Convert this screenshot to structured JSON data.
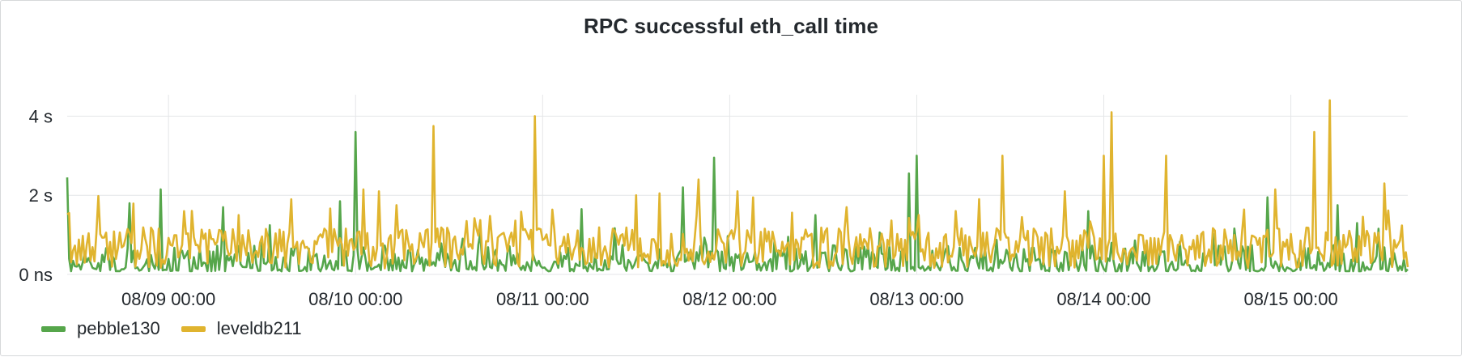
{
  "panel": {
    "title": "RPC successful eth_call time"
  },
  "chart_data": {
    "type": "line",
    "title": "RPC successful eth_call time",
    "xlabel": "",
    "ylabel": "",
    "x_range": [
      "08/08 11:00",
      "08/15 15:00"
    ],
    "ylim": [
      0,
      4.5
    ],
    "y_ticks": [
      {
        "value": 0,
        "label": "0 ns"
      },
      {
        "value": 2,
        "label": "2 s"
      },
      {
        "value": 4,
        "label": "4 s"
      }
    ],
    "x_ticks": [
      {
        "day": 9,
        "label": "08/09 00:00"
      },
      {
        "day": 10,
        "label": "08/10 00:00"
      },
      {
        "day": 11,
        "label": "08/11 00:00"
      },
      {
        "day": 12,
        "label": "08/12 00:00"
      },
      {
        "day": 13,
        "label": "08/13 00:00"
      },
      {
        "day": 14,
        "label": "08/14 00:00"
      },
      {
        "day": 15,
        "label": "08/15 00:00"
      }
    ],
    "grid": true,
    "legend": "bottom-left",
    "series": [
      {
        "name": "pebble130",
        "color": "#56a64b",
        "baseline": 0.3,
        "peaks": [
          {
            "t": "08/08 11:00",
            "v": 2.45
          },
          {
            "t": "08/08 19:00",
            "v": 1.8
          },
          {
            "t": "08/08 23:00",
            "v": 2.15
          },
          {
            "t": "08/09 07:00",
            "v": 1.7
          },
          {
            "t": "08/09 22:00",
            "v": 1.85
          },
          {
            "t": "08/10 00:00",
            "v": 3.6
          },
          {
            "t": "08/11 05:00",
            "v": 1.65
          },
          {
            "t": "08/11 18:00",
            "v": 2.2
          },
          {
            "t": "08/11 22:00",
            "v": 2.95
          },
          {
            "t": "08/12 11:00",
            "v": 1.5
          },
          {
            "t": "08/12 23:00",
            "v": 2.55
          },
          {
            "t": "08/13 00:00",
            "v": 3.0
          },
          {
            "t": "08/13 22:00",
            "v": 1.6
          },
          {
            "t": "08/14 21:00",
            "v": 1.95
          },
          {
            "t": "08/15 06:00",
            "v": 1.75
          }
        ]
      },
      {
        "name": "leveldb211",
        "color": "#e0b42f",
        "baseline": 0.8,
        "peaks": [
          {
            "t": "08/09 02:00",
            "v": 1.6
          },
          {
            "t": "08/09 09:00",
            "v": 1.5
          },
          {
            "t": "08/10 01:00",
            "v": 2.15
          },
          {
            "t": "08/10 03:00",
            "v": 2.1
          },
          {
            "t": "08/10 10:00",
            "v": 3.75
          },
          {
            "t": "08/10 23:00",
            "v": 4.0
          },
          {
            "t": "08/11 12:00",
            "v": 2.0
          },
          {
            "t": "08/11 15:00",
            "v": 2.05
          },
          {
            "t": "08/11 20:00",
            "v": 2.4
          },
          {
            "t": "08/12 01:00",
            "v": 2.1
          },
          {
            "t": "08/12 15:00",
            "v": 1.7
          },
          {
            "t": "08/13 08:00",
            "v": 1.9
          },
          {
            "t": "08/13 11:00",
            "v": 3.0
          },
          {
            "t": "08/13 19:00",
            "v": 2.1
          },
          {
            "t": "08/14 00:00",
            "v": 3.0
          },
          {
            "t": "08/14 01:00",
            "v": 4.1
          },
          {
            "t": "08/14 08:00",
            "v": 3.0
          },
          {
            "t": "08/14 22:00",
            "v": 2.15
          },
          {
            "t": "08/15 03:00",
            "v": 3.6
          },
          {
            "t": "08/15 05:00",
            "v": 4.4
          },
          {
            "t": "08/15 12:00",
            "v": 2.3
          }
        ]
      }
    ]
  }
}
